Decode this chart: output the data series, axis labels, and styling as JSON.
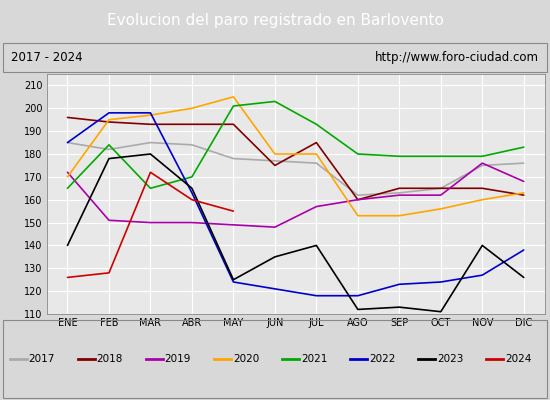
{
  "title": "Evolucion del paro registrado en Barlovento",
  "subtitle_left": "2017 - 2024",
  "subtitle_right": "http://www.foro-ciudad.com",
  "months": [
    "ENE",
    "FEB",
    "MAR",
    "ABR",
    "MAY",
    "JUN",
    "JUL",
    "AGO",
    "SEP",
    "OCT",
    "NOV",
    "DIC"
  ],
  "ylim": [
    110,
    215
  ],
  "yticks": [
    110,
    120,
    130,
    140,
    150,
    160,
    170,
    180,
    190,
    200,
    210
  ],
  "series": {
    "2017": {
      "color": "#aaaaaa",
      "data": [
        185,
        182,
        185,
        184,
        178,
        177,
        176,
        162,
        163,
        165,
        175,
        176
      ]
    },
    "2018": {
      "color": "#800000",
      "data": [
        196,
        194,
        193,
        193,
        193,
        175,
        185,
        160,
        165,
        165,
        165,
        162
      ]
    },
    "2019": {
      "color": "#aa00aa",
      "data": [
        172,
        151,
        150,
        150,
        149,
        148,
        157,
        160,
        162,
        162,
        176,
        168
      ]
    },
    "2020": {
      "color": "#ffa500",
      "data": [
        170,
        195,
        197,
        200,
        205,
        180,
        180,
        153,
        153,
        156,
        160,
        163
      ]
    },
    "2021": {
      "color": "#00aa00",
      "data": [
        165,
        184,
        165,
        170,
        201,
        203,
        193,
        180,
        179,
        179,
        179,
        183
      ]
    },
    "2022": {
      "color": "#0000cc",
      "data": [
        185,
        198,
        198,
        163,
        124,
        121,
        118,
        118,
        123,
        124,
        127,
        138
      ]
    },
    "2023": {
      "color": "#000000",
      "data": [
        140,
        178,
        180,
        165,
        125,
        135,
        140,
        112,
        113,
        111,
        140,
        126
      ]
    },
    "2024": {
      "color": "#cc0000",
      "data": [
        126,
        128,
        172,
        160,
        155,
        null,
        null,
        null,
        null,
        null,
        null,
        null
      ]
    }
  },
  "background_color": "#d8d8d8",
  "plot_bg_color": "#e8e8e8",
  "title_bg_color": "#4472c4",
  "title_color": "#ffffff",
  "grid_color": "#ffffff",
  "legend_bg": "#f0f0f0",
  "subtitle_bg": "#d8d8d8"
}
